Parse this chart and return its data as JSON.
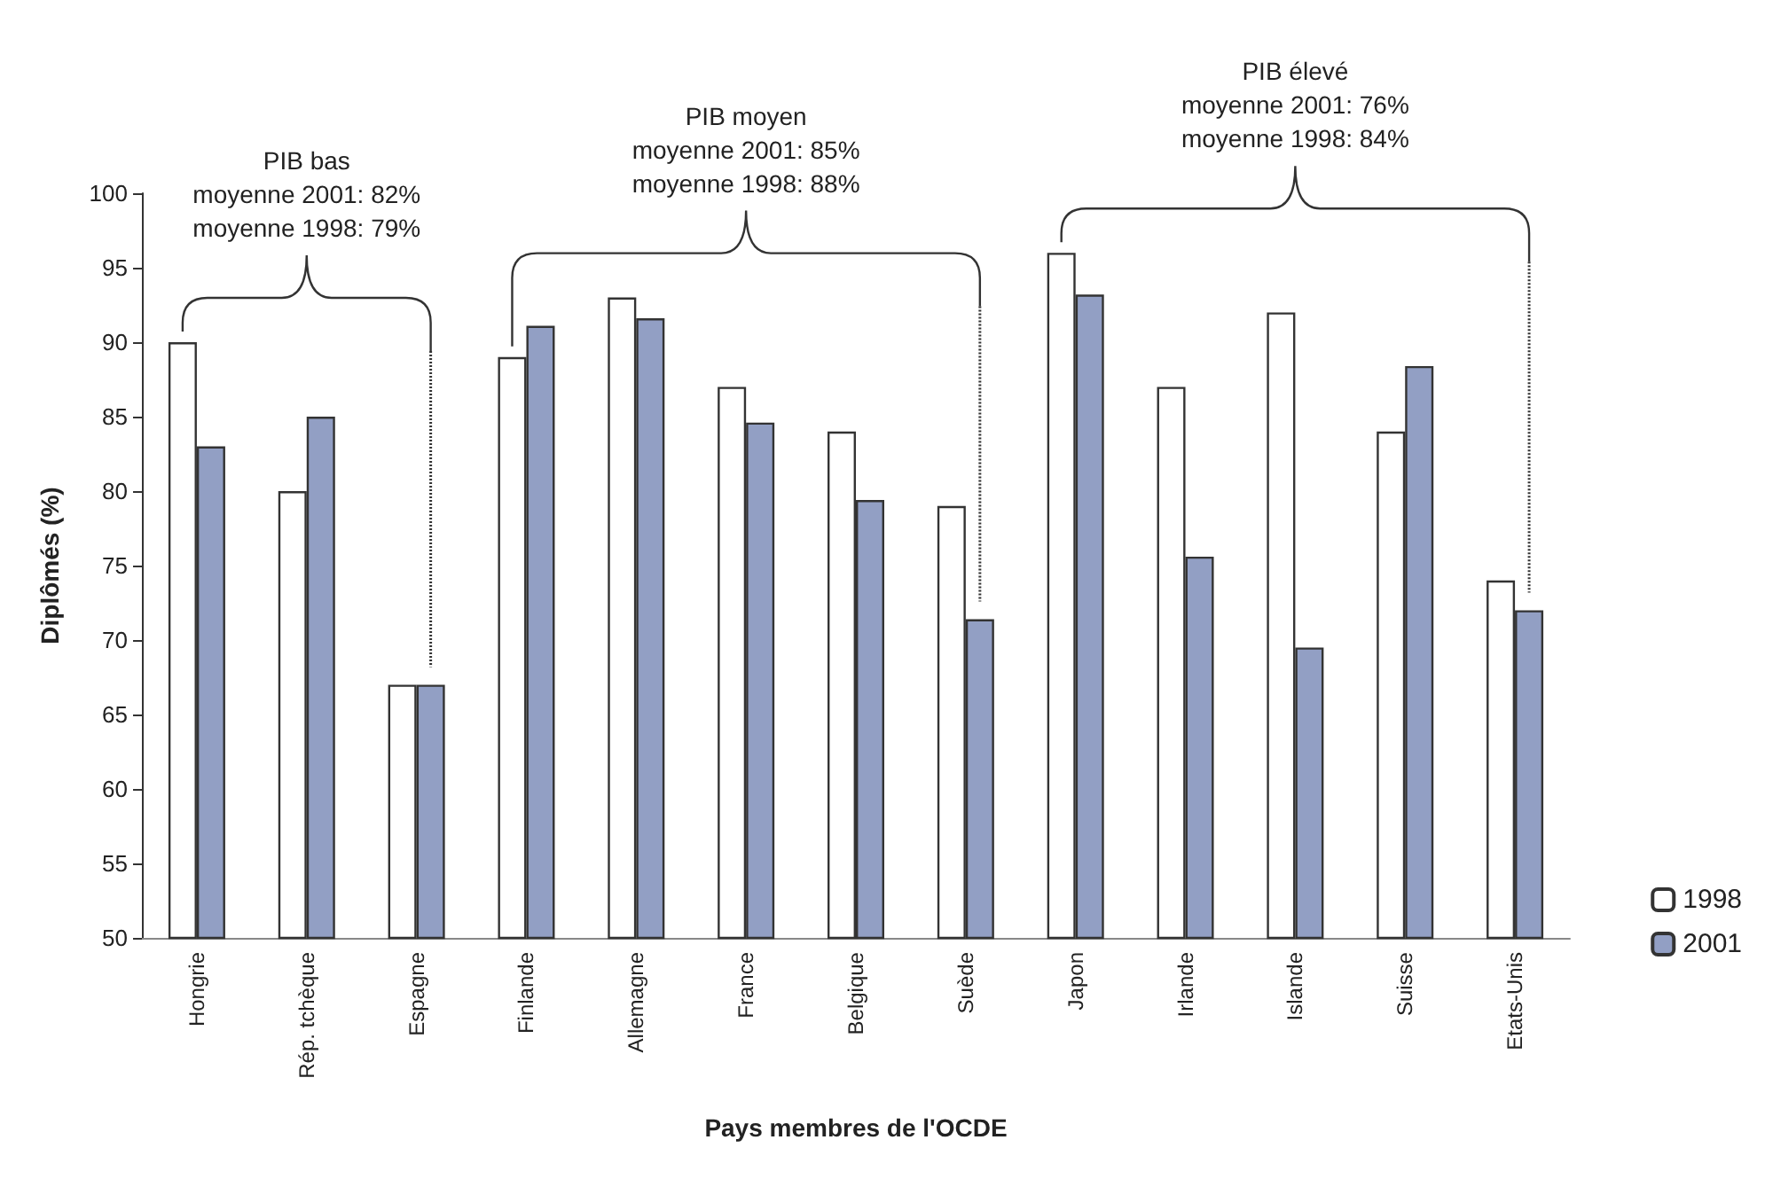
{
  "chart_data": {
    "type": "bar",
    "xlabel": "Pays membres de l'OCDE",
    "ylabel": "Diplômés (%)",
    "categories": [
      "Hongrie",
      "Rép. tchèque",
      "Espagne",
      "Finlande",
      "Allemagne",
      "France",
      "Belgique",
      "Suède",
      "Japon",
      "Irlande",
      "Islande",
      "Suisse",
      "Etats-Unis"
    ],
    "series": [
      {
        "name": "1998",
        "color": "#ffffff",
        "values": [
          90,
          80,
          67,
          89,
          93,
          87,
          84,
          79,
          96,
          87,
          92,
          84,
          74
        ]
      },
      {
        "name": "2001",
        "color": "#929fc4",
        "values": [
          83,
          85,
          67,
          91.1,
          91.6,
          84.6,
          79.4,
          71.4,
          93.2,
          75.6,
          69.5,
          88.4,
          72
        ]
      }
    ],
    "ylim": [
      50,
      100
    ],
    "yticks": [
      50,
      55,
      60,
      65,
      70,
      75,
      80,
      85,
      90,
      95,
      100
    ],
    "grid": false,
    "legend": "bottom right",
    "annotations": [
      "PIB bas\nmoyenne 2001: 82%\nmoyenne 1998: 79%",
      "PIB moyen\nmoyenne 2001: 85%\nmoyenne 1998: 88%",
      "PIB élevé\nmoyenne 2001: 76%\nmoyenne 1998: 84%"
    ]
  }
}
